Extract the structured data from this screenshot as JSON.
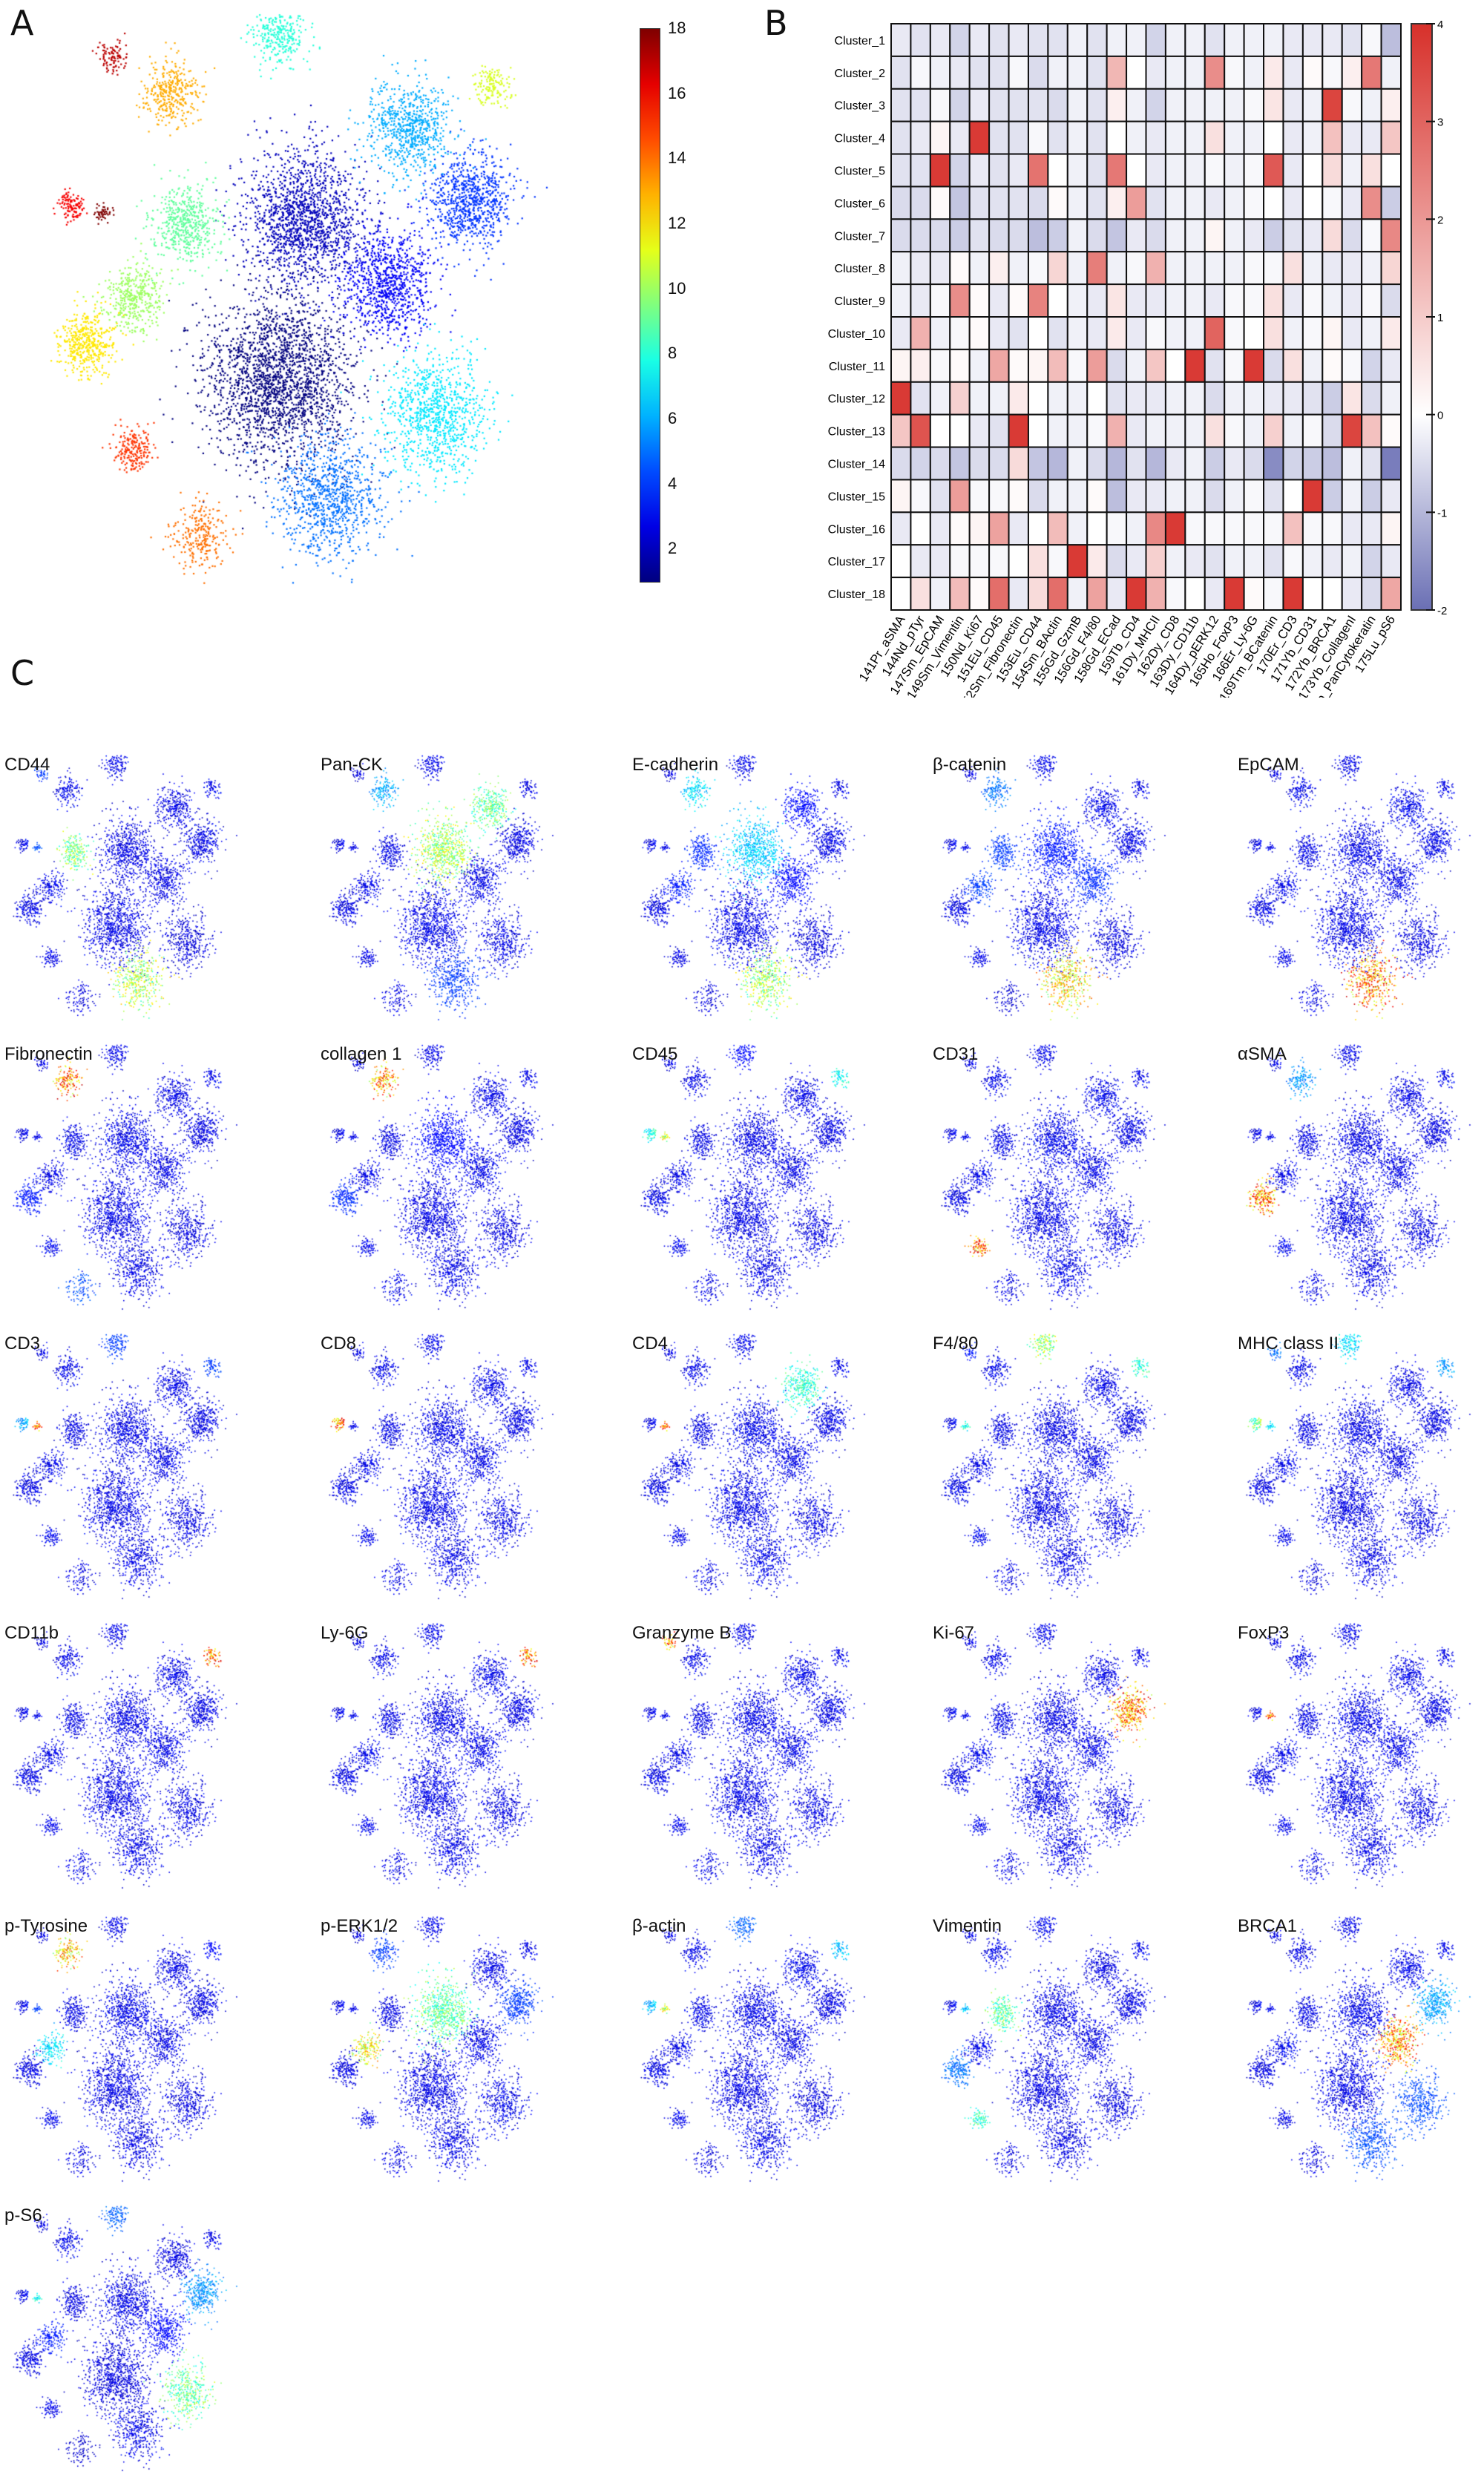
{
  "panels": {
    "a": "A",
    "b": "B",
    "c": "C"
  },
  "chart_data": [
    {
      "type": "scatter",
      "panel": "A",
      "title": "",
      "description_kind": "tSNE colored by cluster",
      "colorbar": {
        "range": [
          1,
          18
        ],
        "ticks": [
          2,
          4,
          6,
          8,
          10,
          12,
          14,
          16,
          18
        ]
      }
    },
    {
      "type": "heatmap",
      "panel": "B",
      "rows": [
        "Cluster_1",
        "Cluster_2",
        "Cluster_3",
        "Cluster_4",
        "Cluster_5",
        "Cluster_6",
        "Cluster_7",
        "Cluster_8",
        "Cluster_9",
        "Cluster_10",
        "Cluster_11",
        "Cluster_12",
        "Cluster_13",
        "Cluster_14",
        "Cluster_15",
        "Cluster_16",
        "Cluster_17",
        "Cluster_18"
      ],
      "columns": [
        "141Pr_aSMA",
        "144Nd_pTyr",
        "147Sm_EpCAM",
        "149Sm_Vimentin",
        "150Nd_Ki67",
        "151Eu_CD45",
        "152Sm_Fibronectin",
        "153Eu_CD44",
        "154Sm_BActin",
        "155Gd_GzmB",
        "156Gd_F4/80",
        "158Gd_ECad",
        "159Tb_CD4",
        "161Dy_MHCII",
        "162Dy_CD8",
        "163Dy_CD11b",
        "164Dy_pERK12",
        "165Ho_FoxP3",
        "166Er_Ly-6G",
        "169Tm_BCatenin",
        "170Er_CD3",
        "171Yb_CD31",
        "172Yb_BRCA1",
        "173Yb_CollagenI",
        "174Yb_PanCytokeratin",
        "175Lu_pS6"
      ],
      "values": [
        [
          -0.3,
          -0.4,
          -0.3,
          -0.6,
          -0.3,
          -0.4,
          -0.3,
          -0.4,
          -0.4,
          -0.2,
          -0.4,
          -0.2,
          -0.2,
          -0.6,
          -0.2,
          -0.2,
          -0.4,
          -0.2,
          -0.2,
          -0.2,
          -0.3,
          -0.3,
          -0.3,
          -0.4,
          -0.1,
          -0.9
        ],
        [
          -0.4,
          -0.1,
          -0.2,
          -0.3,
          -0.4,
          -0.4,
          -0.1,
          -0.5,
          -0.2,
          -0.2,
          -0.4,
          1.4,
          0,
          -0.3,
          -0.2,
          -0.2,
          2.2,
          -0.1,
          -0.2,
          0.4,
          -0.3,
          0.1,
          -0.1,
          0.3,
          2.6,
          -0.2
        ],
        [
          -0.4,
          -0.4,
          -0.1,
          -0.6,
          -0.3,
          -0.4,
          -0.4,
          -0.4,
          -0.5,
          -0.2,
          -0.4,
          0.3,
          -0.2,
          -0.6,
          -0.2,
          -0.2,
          -0.2,
          -0.2,
          -0.1,
          0.5,
          -0.3,
          -0.2,
          3.6,
          -0.1,
          -0.2,
          0.3
        ],
        [
          -0.4,
          -0.3,
          0.2,
          -0.3,
          3.8,
          -0.4,
          -0.4,
          -0.1,
          -0.4,
          -0.2,
          -0.4,
          0,
          -0.2,
          -0.3,
          -0.2,
          -0.2,
          0.6,
          -0.2,
          -0.2,
          0,
          -0.3,
          -0.2,
          1.2,
          -0.3,
          -0.3,
          1.1
        ],
        [
          -0.4,
          -0.4,
          3.8,
          -0.6,
          -0.3,
          -0.4,
          -0.3,
          2.7,
          0,
          -0.2,
          -0.4,
          2.6,
          0,
          -0.3,
          -0.2,
          -0.2,
          -0.1,
          -0.2,
          -0.1,
          3.2,
          -0.3,
          0,
          0.7,
          -0.2,
          0.6,
          0
        ],
        [
          -0.5,
          -0.5,
          0.1,
          -0.8,
          -0.4,
          -0.4,
          -0.4,
          -0.5,
          0.1,
          -0.2,
          -0.4,
          0.3,
          1.9,
          -0.4,
          -0.2,
          -0.2,
          -0.3,
          -0.2,
          -0.1,
          0,
          -0.3,
          0,
          -0.1,
          -0.3,
          2.2,
          -0.7
        ],
        [
          -0.5,
          -0.5,
          -0.5,
          -0.7,
          -0.4,
          -0.5,
          -0.5,
          -0.9,
          -0.7,
          -0.2,
          -0.5,
          -0.8,
          -0.3,
          -0.5,
          -0.2,
          -0.2,
          0.2,
          -0.2,
          -0.3,
          -0.7,
          -0.4,
          -0.3,
          0.7,
          -0.5,
          -0.1,
          2.3
        ],
        [
          -0.2,
          -0.3,
          -0.3,
          0.1,
          -0.2,
          0.3,
          -0.2,
          -0.1,
          0.8,
          -0.2,
          2.5,
          -0.2,
          -0.1,
          1.5,
          -0.2,
          -0.2,
          -0.2,
          -0.2,
          -0.1,
          -0.1,
          0.6,
          -0.2,
          -0.3,
          -0.3,
          -0.2,
          0.8
        ],
        [
          -0.2,
          -0.3,
          -0.1,
          2.2,
          0.1,
          -0.3,
          0.1,
          2.4,
          0,
          -0.2,
          -0.3,
          0.5,
          -0.3,
          -0.3,
          -0.2,
          -0.2,
          -0.3,
          -0.1,
          -0.1,
          0.6,
          -0.3,
          -0.1,
          -0.2,
          -0.3,
          -0.1,
          -0.5
        ],
        [
          -0.3,
          1.5,
          -0.2,
          -0.1,
          0.1,
          -0.3,
          -0.4,
          0,
          -0.4,
          -0.2,
          -0.3,
          0.4,
          -0.3,
          -0.1,
          -0.2,
          -0.2,
          3.0,
          -0.1,
          0,
          0.6,
          -0.2,
          -0.1,
          0.2,
          -0.3,
          -0.2,
          0.4
        ],
        [
          0.2,
          0.3,
          -0.1,
          0.1,
          -0.2,
          1.7,
          0.1,
          0.2,
          1.3,
          -0.1,
          1.9,
          -0.5,
          -0.2,
          1.1,
          0,
          3.8,
          -0.4,
          -0.1,
          3.8,
          -0.5,
          0.6,
          -0.2,
          0.1,
          -0.1,
          -0.6,
          -0.3
        ],
        [
          3.8,
          -0.4,
          -0.2,
          0.9,
          -0.2,
          -0.2,
          0.4,
          0,
          -0.2,
          -0.2,
          0,
          -0.4,
          -0.3,
          -0.3,
          -0.2,
          -0.2,
          -0.5,
          -0.2,
          -0.2,
          -0.3,
          -0.3,
          -0.4,
          -0.7,
          0.5,
          -0.5,
          -0.2
        ],
        [
          1.1,
          3.3,
          0,
          0,
          -0.3,
          -0.4,
          3.8,
          0,
          -0.2,
          -0.2,
          -0.1,
          1.5,
          -0.3,
          -0.2,
          -0.2,
          -0.2,
          0.6,
          -0.1,
          -0.2,
          0.9,
          -0.2,
          -0.1,
          -0.5,
          3.6,
          1.2,
          0.1
        ],
        [
          -0.5,
          -0.6,
          -0.5,
          -0.8,
          -0.5,
          -0.5,
          0.7,
          -0.8,
          -1.0,
          -0.2,
          -0.5,
          -1.0,
          -0.4,
          -1.0,
          -0.3,
          -0.2,
          -0.7,
          -0.3,
          -0.5,
          -1.6,
          -0.6,
          -0.7,
          -0.9,
          -0.2,
          -0.4,
          -1.8
        ],
        [
          0.2,
          -0.1,
          -0.4,
          1.9,
          -0.1,
          -0.1,
          0.1,
          -0.5,
          -0.2,
          -0.2,
          0.1,
          -0.9,
          -0.3,
          -0.3,
          -0.2,
          -0.2,
          -0.5,
          -0.2,
          -0.1,
          -0.4,
          0,
          3.8,
          -0.7,
          -0.2,
          -0.7,
          -0.3
        ],
        [
          -0.3,
          0,
          -0.3,
          0.1,
          0.2,
          1.8,
          -0.3,
          0,
          1.3,
          -0.2,
          0,
          -0.1,
          -0.2,
          2.3,
          3.8,
          -0.1,
          -0.1,
          -0.1,
          -0.1,
          -0.1,
          1.2,
          -0.1,
          -0.1,
          -0.3,
          -0.3,
          0.2
        ],
        [
          0,
          -0.3,
          -0.3,
          -0.1,
          -0.1,
          -0.1,
          0,
          0.6,
          -0.1,
          3.8,
          0.4,
          -0.5,
          -0.3,
          0.9,
          -0.2,
          -0.3,
          -0.4,
          -0.2,
          -0.2,
          -0.4,
          -0.1,
          -0.2,
          -0.3,
          -0.2,
          -0.6,
          -0.3
        ],
        [
          0,
          0.6,
          -0.2,
          1.3,
          0.1,
          2.8,
          -0.3,
          0.7,
          2.8,
          -0.2,
          1.8,
          -0.3,
          3.8,
          1.5,
          -0.1,
          0,
          -0.3,
          3.8,
          0.1,
          -0.1,
          3.8,
          0,
          0,
          -0.3,
          -0.5,
          1.7
        ]
      ],
      "colorbar": {
        "range": [
          -2,
          4
        ],
        "ticks": [
          4,
          3,
          2,
          1,
          0,
          -1,
          -2
        ],
        "low_color": "#6a6fb4",
        "mid_color": "#ffffff",
        "high_color": "#d7302a"
      }
    },
    {
      "type": "scatter",
      "panel": "C",
      "description_kind": "tSNE colored by marker expression",
      "markers": [
        "CD44",
        "Pan-CK",
        "E-cadherin",
        "β-catenin",
        "EpCAM",
        "Fibronectin",
        "collagen 1",
        "CD45",
        "CD31",
        "αSMA",
        "CD3",
        "CD8",
        "CD4",
        "F4/80",
        "MHC class II",
        "CD11b",
        "Ly-6G",
        "Granzyme B",
        "Ki-67",
        "FoxP3",
        "p-Tyrosine",
        "p-ERK1/2",
        "β-actin",
        "Vimentin",
        "BRCA1",
        "p-S6"
      ]
    }
  ]
}
